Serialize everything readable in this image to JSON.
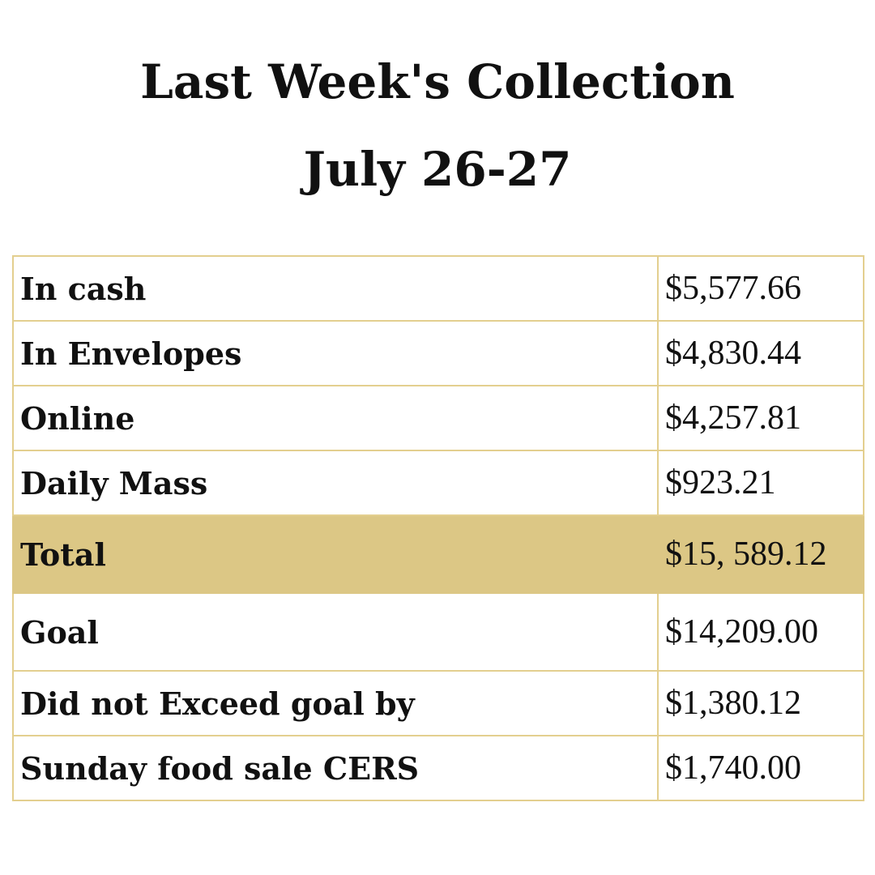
{
  "title": {
    "line1": "Last Week's Collection",
    "line2": "July 26-27"
  },
  "table": {
    "rows": [
      {
        "label": "In cash",
        "value": "$5,577.66"
      },
      {
        "label": "In Envelopes",
        "value": "$4,830.44"
      },
      {
        "label": "Online",
        "value": "$4,257.81"
      },
      {
        "label": "Daily Mass",
        "value": "$923.21"
      },
      {
        "label": "Total",
        "value": "$15, 589.12"
      },
      {
        "label": "Goal",
        "value": "$14,209.00"
      },
      {
        "label": "Did not Exceed goal by",
        "value": "$1,380.12"
      },
      {
        "label": "Sunday food sale CERS",
        "value": "$1,740.00"
      }
    ]
  },
  "colors": {
    "border": "#e3cf8f",
    "total_highlight": "#dcc785",
    "text": "#111111",
    "background": "#ffffff"
  }
}
